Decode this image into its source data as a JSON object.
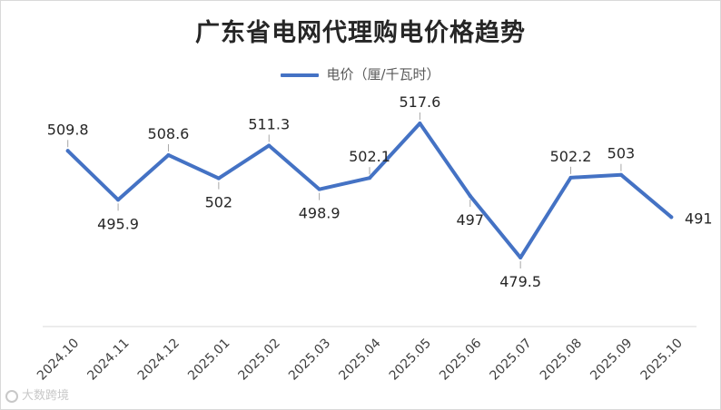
{
  "chart_data": {
    "type": "line",
    "title": "广东省电网代理购电价格趋势",
    "categories": [
      "2024.10",
      "2024.11",
      "2024.12",
      "2025.01",
      "2025.02",
      "2025.03",
      "2025.04",
      "2025.05",
      "2025.06",
      "2025.07",
      "2025.08",
      "2025.09",
      "2025.10"
    ],
    "series": [
      {
        "name": "电价（厘/千瓦时）",
        "values": [
          509.8,
          495.9,
          508.6,
          502,
          511.3,
          498.9,
          502.1,
          517.6,
          497,
          479.5,
          502.2,
          503,
          491
        ],
        "labels": [
          "509.8",
          "495.9",
          "508.6",
          "502",
          "511.3",
          "498.9",
          "502.1",
          "517.6",
          "497",
          "479.5",
          "502.2",
          "503",
          "491"
        ]
      }
    ],
    "ylim": [
      470,
      525
    ],
    "legend_position": "top",
    "grid": false,
    "colors": {
      "line": "#4472C4",
      "axis": "#d9d9d9",
      "leader": "#a6a6a6"
    }
  },
  "watermark": {
    "text": "大数跨境"
  }
}
